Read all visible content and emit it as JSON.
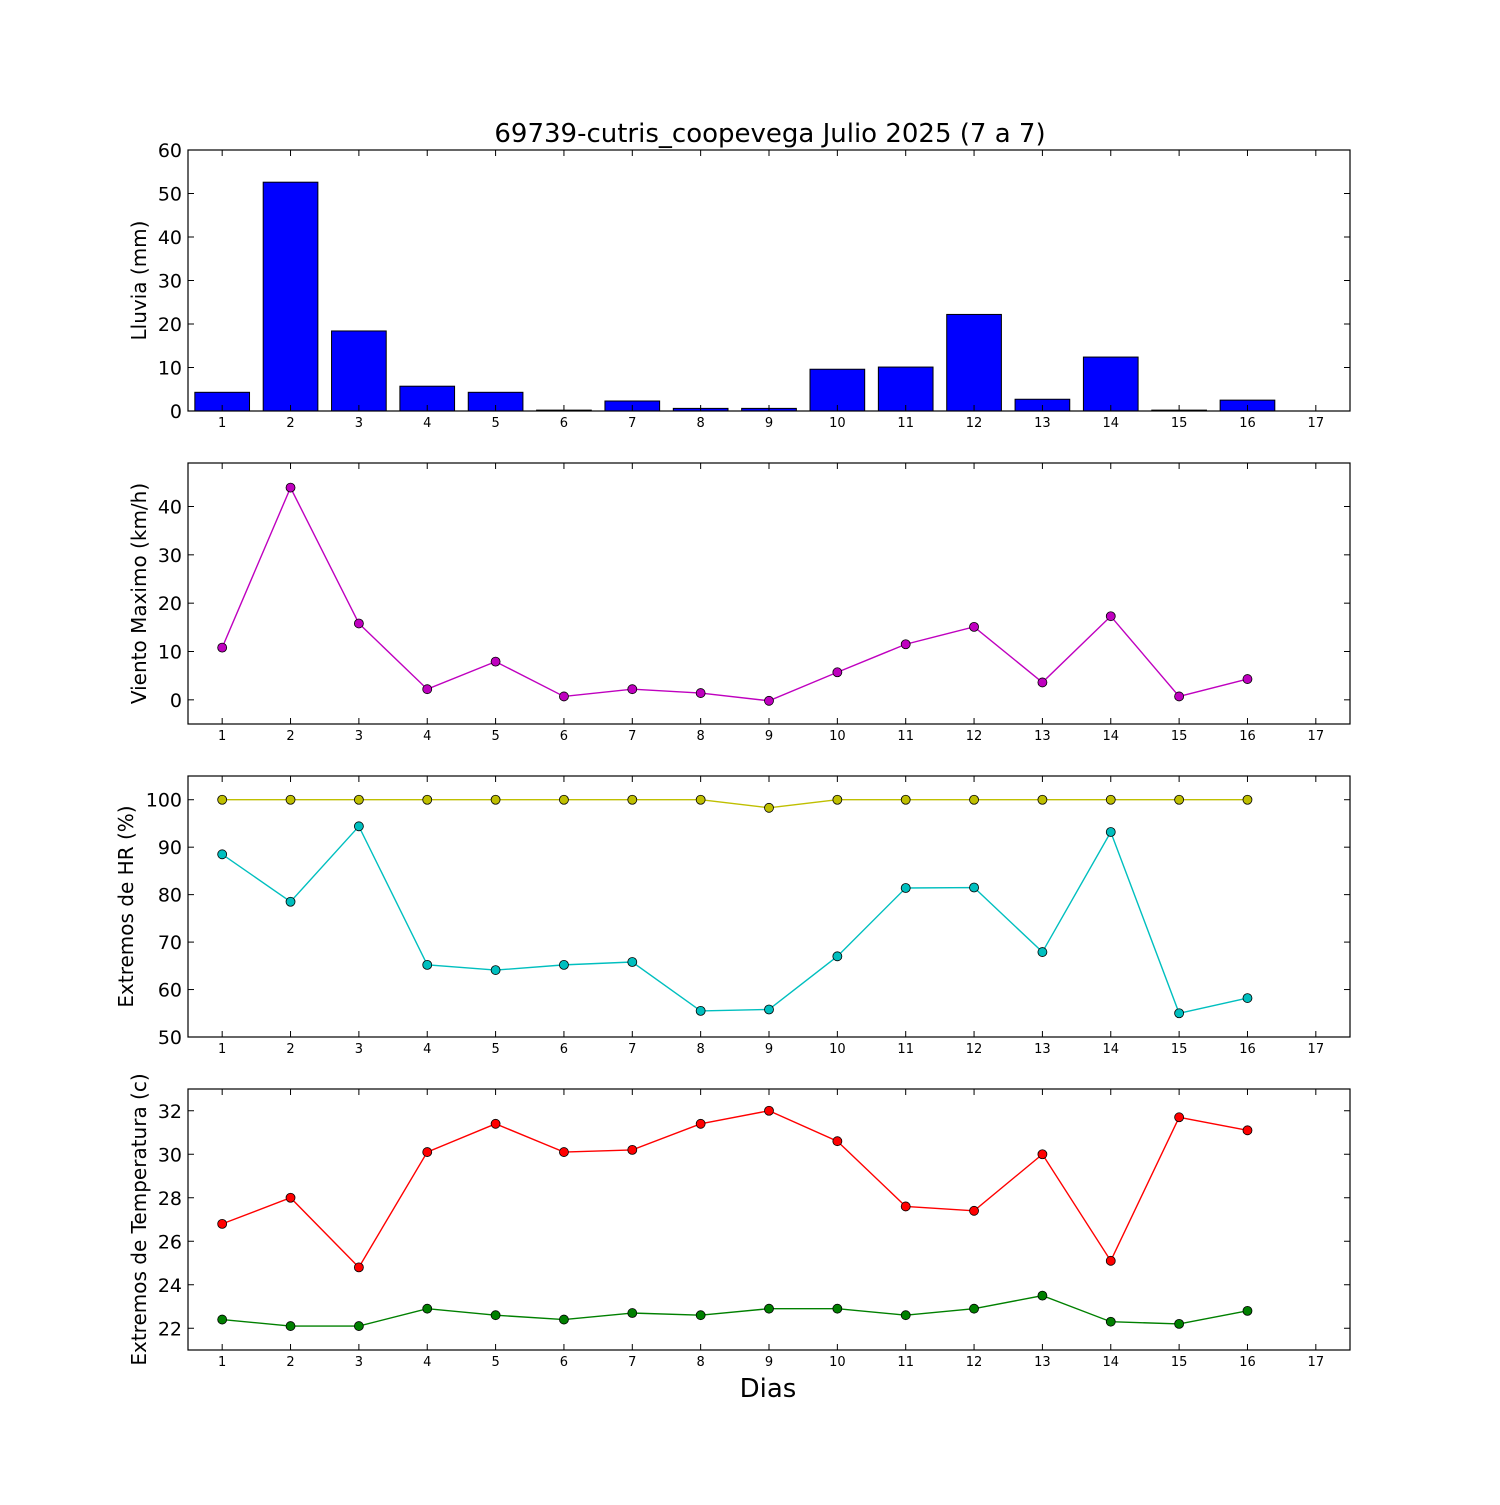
{
  "figure": {
    "title": "69739-cutris_coopevega Julio 2025  (7 a 7)",
    "xlabel": "Dias"
  },
  "chart_data": [
    {
      "type": "bar",
      "ylabel": "Lluvia (mm)",
      "x": [
        1,
        2,
        3,
        4,
        5,
        6,
        7,
        8,
        9,
        10,
        11,
        12,
        13,
        14,
        15,
        16
      ],
      "xticks": [
        1,
        2,
        3,
        4,
        5,
        6,
        7,
        8,
        9,
        10,
        11,
        12,
        13,
        14,
        15,
        16,
        17
      ],
      "xlim": [
        0.5,
        17.5
      ],
      "ylim": [
        0,
        60
      ],
      "yticks": [
        0,
        10,
        20,
        30,
        40,
        50,
        60
      ],
      "series": [
        {
          "color": "#0000ff",
          "values": [
            4.3,
            52.6,
            18.4,
            5.7,
            4.3,
            0.2,
            2.3,
            0.6,
            0.6,
            9.6,
            10.1,
            22.2,
            2.7,
            12.4,
            0.2,
            2.5
          ]
        }
      ]
    },
    {
      "type": "line",
      "ylabel": "Viento Maximo (km/h)",
      "x": [
        1,
        2,
        3,
        4,
        5,
        6,
        7,
        8,
        9,
        10,
        11,
        12,
        13,
        14,
        15,
        16
      ],
      "xticks": [
        1,
        2,
        3,
        4,
        5,
        6,
        7,
        8,
        9,
        10,
        11,
        12,
        13,
        14,
        15,
        16,
        17
      ],
      "xlim": [
        0.5,
        17.5
      ],
      "ylim": [
        -5,
        49
      ],
      "yticks": [
        0,
        10,
        20,
        30,
        40
      ],
      "series": [
        {
          "color": "#bf00bf",
          "values": [
            10.8,
            43.9,
            15.8,
            2.2,
            7.9,
            0.7,
            2.2,
            1.4,
            -0.2,
            5.7,
            11.5,
            15.1,
            3.6,
            17.3,
            0.7,
            4.3
          ]
        }
      ]
    },
    {
      "type": "line",
      "ylabel": "Extremos de HR (%)",
      "x": [
        1,
        2,
        3,
        4,
        5,
        6,
        7,
        8,
        9,
        10,
        11,
        12,
        13,
        14,
        15,
        16
      ],
      "xticks": [
        1,
        2,
        3,
        4,
        5,
        6,
        7,
        8,
        9,
        10,
        11,
        12,
        13,
        14,
        15,
        16,
        17
      ],
      "xlim": [
        0.5,
        17.5
      ],
      "ylim": [
        50,
        105
      ],
      "yticks": [
        50,
        60,
        70,
        80,
        90,
        100
      ],
      "series": [
        {
          "color": "#bfbf00",
          "values": [
            100,
            100,
            100,
            100,
            100,
            100,
            100,
            100,
            98.3,
            100,
            100,
            100,
            100,
            100,
            100,
            100
          ]
        },
        {
          "color": "#00bfbf",
          "values": [
            88.5,
            78.5,
            94.4,
            65.2,
            64.1,
            65.2,
            65.8,
            55.5,
            55.8,
            67.0,
            81.4,
            81.5,
            67.9,
            93.2,
            55.0,
            58.2
          ]
        }
      ]
    },
    {
      "type": "line",
      "ylabel": "Extremos de Temperatura (c)",
      "x": [
        1,
        2,
        3,
        4,
        5,
        6,
        7,
        8,
        9,
        10,
        11,
        12,
        13,
        14,
        15,
        16
      ],
      "xticks": [
        1,
        2,
        3,
        4,
        5,
        6,
        7,
        8,
        9,
        10,
        11,
        12,
        13,
        14,
        15,
        16,
        17
      ],
      "xlim": [
        0.5,
        17.5
      ],
      "ylim": [
        21,
        33
      ],
      "yticks": [
        22,
        24,
        26,
        28,
        30,
        32
      ],
      "series": [
        {
          "color": "#ff0000",
          "values": [
            26.8,
            28.0,
            24.8,
            30.1,
            31.4,
            30.1,
            30.2,
            31.4,
            32.0,
            30.6,
            27.6,
            27.4,
            30.0,
            25.1,
            31.7,
            31.1
          ]
        },
        {
          "color": "#008000",
          "values": [
            22.4,
            22.1,
            22.1,
            22.9,
            22.6,
            22.4,
            22.7,
            22.6,
            22.9,
            22.9,
            22.6,
            22.9,
            23.5,
            22.3,
            22.2,
            22.8
          ]
        }
      ]
    }
  ]
}
